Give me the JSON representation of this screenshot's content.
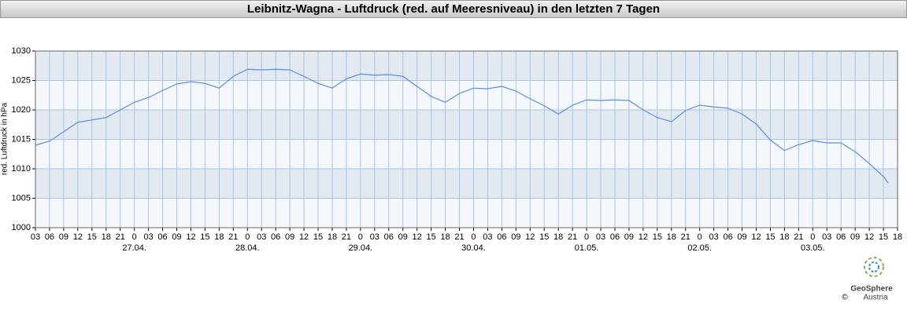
{
  "chart_data": {
    "type": "line",
    "title": "Leibnitz-Wagna - Luftdruck (red. auf Meeresniveau) in den letzten 7 Tagen",
    "y_label": "red. Luftdruck in hPa",
    "x": [
      "26.04. 03:00",
      "26.04. 06:00",
      "26.04. 09:00",
      "26.04. 12:00",
      "26.04. 15:00",
      "26.04. 18:00",
      "26.04. 21:00",
      "27.04. 00:00",
      "27.04. 03:00",
      "27.04. 06:00",
      "27.04. 09:00",
      "27.04. 12:00",
      "27.04. 15:00",
      "27.04. 18:00",
      "27.04. 21:00",
      "28.04. 00:00",
      "28.04. 03:00",
      "28.04. 06:00",
      "28.04. 09:00",
      "28.04. 12:00",
      "28.04. 15:00",
      "28.04. 18:00",
      "28.04. 21:00",
      "29.04. 00:00",
      "29.04. 03:00",
      "29.04. 06:00",
      "29.04. 09:00",
      "29.04. 12:00",
      "29.04. 15:00",
      "29.04. 18:00",
      "29.04. 21:00",
      "30.04. 00:00",
      "30.04. 03:00",
      "30.04. 06:00",
      "30.04. 09:00",
      "30.04. 12:00",
      "30.04. 15:00",
      "30.04. 18:00",
      "30.04. 21:00",
      "01.05. 00:00",
      "01.05. 03:00",
      "01.05. 06:00",
      "01.05. 09:00",
      "01.05. 12:00",
      "01.05. 15:00",
      "01.05. 18:00",
      "01.05. 21:00",
      "02.05. 00:00",
      "02.05. 03:00",
      "02.05. 06:00",
      "02.05. 09:00",
      "02.05. 12:00",
      "02.05. 15:00",
      "02.05. 18:00",
      "02.05. 21:00",
      "03.05. 00:00",
      "03.05. 03:00",
      "03.05. 06:00",
      "03.05. 09:00",
      "03.05. 12:00",
      "03.05. 15:00",
      "03.05. 16:00"
    ],
    "series": [
      {
        "name": "Luftdruck",
        "color": "#5b8de0",
        "values": [
          1014.0,
          1014.7,
          1016.3,
          1017.9,
          1018.3,
          1018.7,
          1020.0,
          1021.3,
          1022.1,
          1023.3,
          1024.4,
          1024.8,
          1024.5,
          1023.7,
          1025.7,
          1026.9,
          1026.8,
          1026.9,
          1026.8,
          1025.7,
          1024.5,
          1023.7,
          1025.3,
          1026.1,
          1025.9,
          1026.0,
          1025.7,
          1024.0,
          1022.3,
          1021.3,
          1022.8,
          1023.7,
          1023.6,
          1024.0,
          1023.2,
          1021.9,
          1020.7,
          1019.3,
          1020.8,
          1021.7,
          1021.6,
          1021.7,
          1021.6,
          1020.0,
          1018.7,
          1018.0,
          1019.9,
          1020.8,
          1020.5,
          1020.3,
          1019.3,
          1017.6,
          1014.9,
          1013.1,
          1014.1,
          1014.8,
          1014.4,
          1014.4,
          1012.9,
          1010.9,
          1008.7,
          1007.6
        ]
      }
    ],
    "xlim": [
      "26.04. 03:00",
      "03.05. 18:00"
    ],
    "xticks": [
      {
        "value": "26.04. 03:00",
        "label": "03"
      },
      {
        "value": "26.04. 06:00",
        "label": "06"
      },
      {
        "value": "26.04. 09:00",
        "label": "09"
      },
      {
        "value": "26.04. 12:00",
        "label": "12"
      },
      {
        "value": "26.04. 15:00",
        "label": "15"
      },
      {
        "value": "26.04. 18:00",
        "label": "18"
      },
      {
        "value": "26.04. 21:00",
        "label": "21"
      },
      {
        "value": "27.04. 00:00",
        "label": "0"
      },
      {
        "value": "27.04. 03:00",
        "label": "03"
      },
      {
        "value": "27.04. 06:00",
        "label": "06"
      },
      {
        "value": "27.04. 09:00",
        "label": "09"
      },
      {
        "value": "27.04. 12:00",
        "label": "12"
      },
      {
        "value": "27.04. 15:00",
        "label": "15"
      },
      {
        "value": "27.04. 18:00",
        "label": "18"
      },
      {
        "value": "27.04. 21:00",
        "label": "21"
      },
      {
        "value": "28.04. 00:00",
        "label": "0"
      },
      {
        "value": "28.04. 03:00",
        "label": "03"
      },
      {
        "value": "28.04. 06:00",
        "label": "06"
      },
      {
        "value": "28.04. 09:00",
        "label": "09"
      },
      {
        "value": "28.04. 12:00",
        "label": "12"
      },
      {
        "value": "28.04. 15:00",
        "label": "15"
      },
      {
        "value": "28.04. 18:00",
        "label": "18"
      },
      {
        "value": "28.04. 21:00",
        "label": "21"
      },
      {
        "value": "29.04. 00:00",
        "label": "0"
      },
      {
        "value": "29.04. 03:00",
        "label": "03"
      },
      {
        "value": "29.04. 06:00",
        "label": "06"
      },
      {
        "value": "29.04. 09:00",
        "label": "09"
      },
      {
        "value": "29.04. 12:00",
        "label": "12"
      },
      {
        "value": "29.04. 15:00",
        "label": "15"
      },
      {
        "value": "29.04. 18:00",
        "label": "18"
      },
      {
        "value": "29.04. 21:00",
        "label": "21"
      },
      {
        "value": "30.04. 00:00",
        "label": "0"
      },
      {
        "value": "30.04. 03:00",
        "label": "03"
      },
      {
        "value": "30.04. 06:00",
        "label": "06"
      },
      {
        "value": "30.04. 09:00",
        "label": "09"
      },
      {
        "value": "30.04. 12:00",
        "label": "12"
      },
      {
        "value": "30.04. 15:00",
        "label": "15"
      },
      {
        "value": "30.04. 18:00",
        "label": "18"
      },
      {
        "value": "30.04. 21:00",
        "label": "21"
      },
      {
        "value": "01.05. 00:00",
        "label": "0"
      },
      {
        "value": "01.05. 03:00",
        "label": "03"
      },
      {
        "value": "01.05. 06:00",
        "label": "06"
      },
      {
        "value": "01.05. 09:00",
        "label": "09"
      },
      {
        "value": "01.05. 12:00",
        "label": "12"
      },
      {
        "value": "01.05. 15:00",
        "label": "15"
      },
      {
        "value": "01.05. 18:00",
        "label": "18"
      },
      {
        "value": "01.05. 21:00",
        "label": "21"
      },
      {
        "value": "02.05. 00:00",
        "label": "0"
      },
      {
        "value": "02.05. 03:00",
        "label": "03"
      },
      {
        "value": "02.05. 06:00",
        "label": "06"
      },
      {
        "value": "02.05. 09:00",
        "label": "09"
      },
      {
        "value": "02.05. 12:00",
        "label": "12"
      },
      {
        "value": "02.05. 15:00",
        "label": "15"
      },
      {
        "value": "02.05. 18:00",
        "label": "18"
      },
      {
        "value": "02.05. 21:00",
        "label": "21"
      },
      {
        "value": "03.05. 00:00",
        "label": "0"
      },
      {
        "value": "03.05. 03:00",
        "label": "03"
      },
      {
        "value": "03.05. 06:00",
        "label": "06"
      },
      {
        "value": "03.05. 09:00",
        "label": "09"
      },
      {
        "value": "03.05. 12:00",
        "label": "12"
      },
      {
        "value": "03.05. 15:00",
        "label": "15"
      },
      {
        "value": "03.05. 18:00",
        "label": "18"
      }
    ],
    "date_labels": [
      {
        "value": "27.04. 00:00",
        "label": "27.04."
      },
      {
        "value": "28.04. 00:00",
        "label": "28.04."
      },
      {
        "value": "29.04. 00:00",
        "label": "29.04."
      },
      {
        "value": "30.04. 00:00",
        "label": "30.04."
      },
      {
        "value": "01.05. 00:00",
        "label": "01.05."
      },
      {
        "value": "02.05. 00:00",
        "label": "02.05."
      },
      {
        "value": "03.05. 00:00",
        "label": "03.05."
      }
    ],
    "ylim": [
      1000,
      1030
    ],
    "yticks": [
      1000,
      1005,
      1010,
      1015,
      1020,
      1025,
      1030
    ],
    "grid": true
  },
  "logo": {
    "name": "GeoSphere",
    "sub": "Austria",
    "copyright": "©"
  }
}
